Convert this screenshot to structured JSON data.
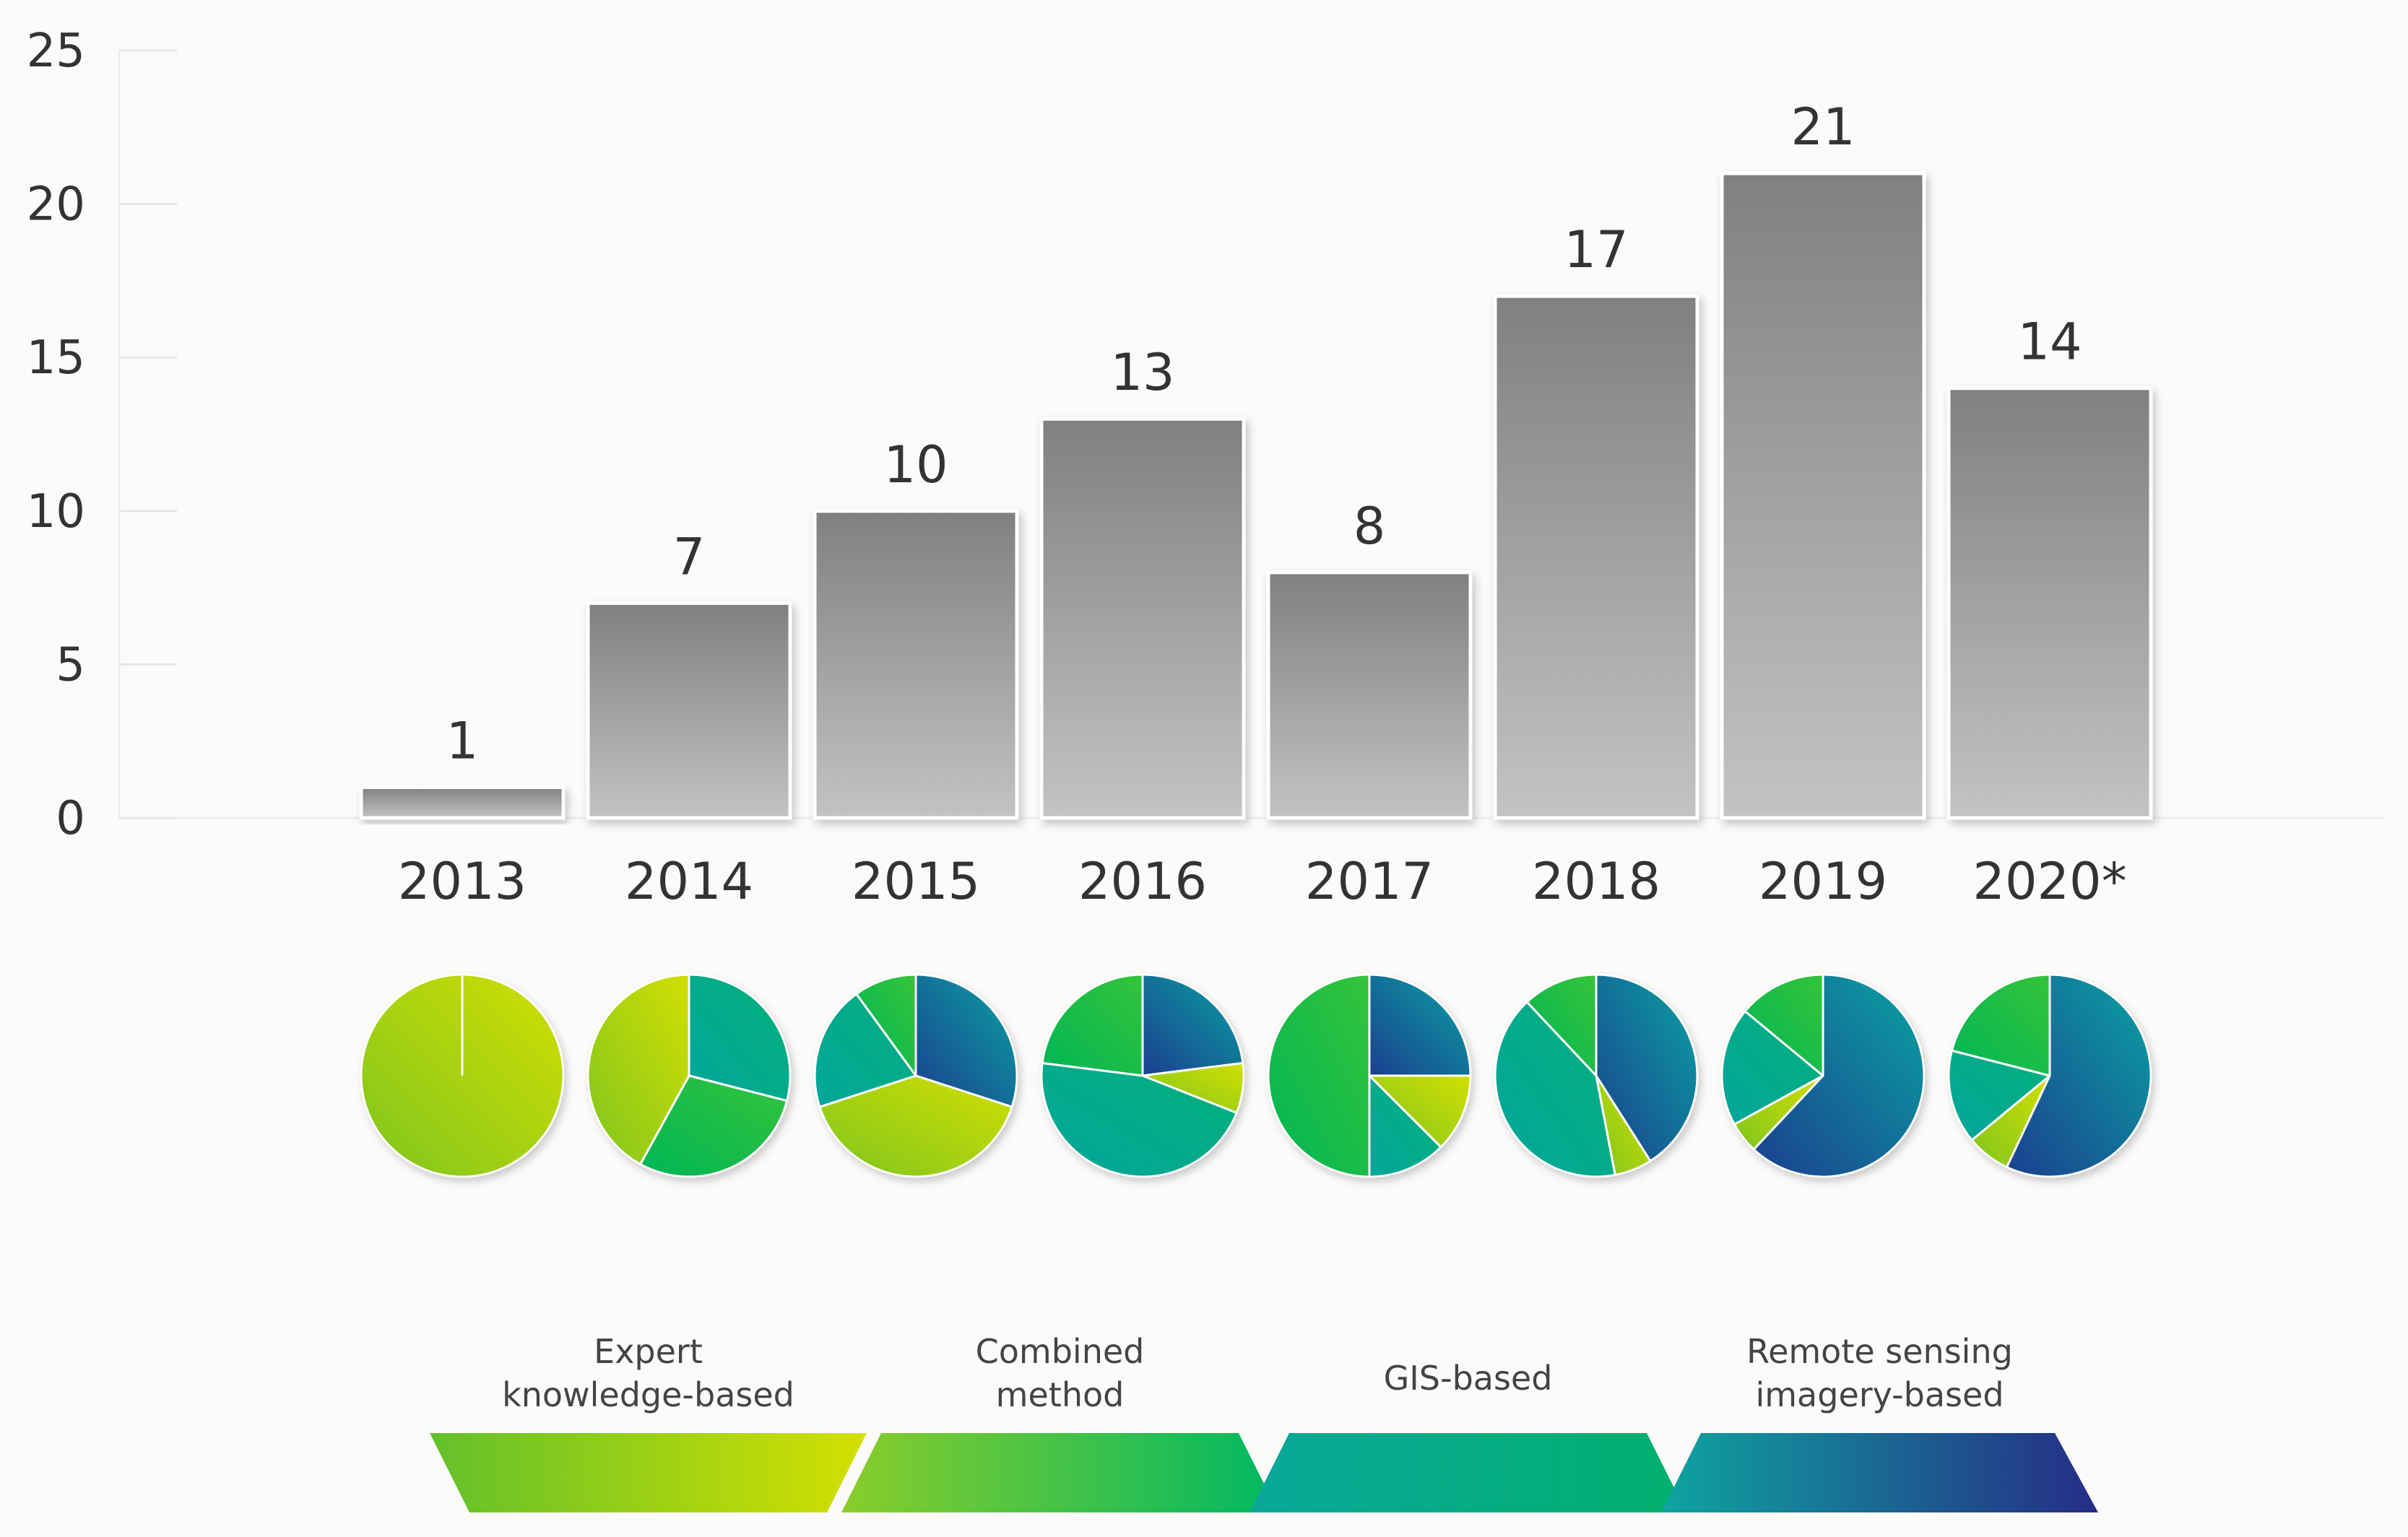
{
  "chart_data": {
    "type": "bar",
    "categories": [
      "2013",
      "2014",
      "2015",
      "2016",
      "2017",
      "2018",
      "2019",
      "2020*"
    ],
    "values": [
      1,
      7,
      10,
      13,
      8,
      17,
      21,
      14
    ],
    "value_labels": [
      "1",
      "7",
      "10",
      "13",
      "8",
      "17",
      "21",
      "14"
    ],
    "ylim": [
      0,
      25
    ],
    "yticks": [
      0,
      5,
      10,
      15,
      20,
      25
    ],
    "ytick_labels": [
      "0",
      "5",
      "10",
      "15",
      "20",
      "25"
    ],
    "title": "",
    "xlabel": "",
    "ylabel": "",
    "grid": false,
    "bar_color_top": "#7e8082",
    "bar_color_bottom": "#c2c3c5",
    "pie_series": [
      {
        "year": "2013",
        "slices": [
          {
            "method": "Remote sensing imagery-based",
            "share": 0.0
          },
          {
            "method": "GIS-based",
            "share": 0.0
          },
          {
            "method": "Combined method",
            "share": 0.0
          },
          {
            "method": "Expert knowledge-based",
            "share": 1.0
          }
        ]
      },
      {
        "year": "2014",
        "slices": [
          {
            "method": "Remote sensing imagery-based",
            "share": 0.0
          },
          {
            "method": "GIS-based",
            "share": 0.29
          },
          {
            "method": "Combined method",
            "share": 0.29
          },
          {
            "method": "Expert knowledge-based",
            "share": 0.42
          }
        ]
      },
      {
        "year": "2015",
        "slices": [
          {
            "method": "Remote sensing imagery-based",
            "share": 0.3
          },
          {
            "method": "Expert knowledge-based",
            "share": 0.4
          },
          {
            "method": "GIS-based",
            "share": 0.2
          },
          {
            "method": "Combined method",
            "share": 0.1
          }
        ]
      },
      {
        "year": "2016",
        "slices": [
          {
            "method": "Remote sensing imagery-based",
            "share": 0.23
          },
          {
            "method": "Expert knowledge-based",
            "share": 0.08
          },
          {
            "method": "GIS-based",
            "share": 0.46
          },
          {
            "method": "Combined method",
            "share": 0.23
          }
        ]
      },
      {
        "year": "2017",
        "slices": [
          {
            "method": "Remote sensing imagery-based",
            "share": 0.25
          },
          {
            "method": "Expert knowledge-based",
            "share": 0.125
          },
          {
            "method": "GIS-based",
            "share": 0.125
          },
          {
            "method": "Combined method",
            "share": 0.5
          }
        ]
      },
      {
        "year": "2018",
        "slices": [
          {
            "method": "Remote sensing imagery-based",
            "share": 0.41
          },
          {
            "method": "Expert knowledge-based",
            "share": 0.06
          },
          {
            "method": "GIS-based",
            "share": 0.41
          },
          {
            "method": "Combined method",
            "share": 0.12
          }
        ]
      },
      {
        "year": "2019",
        "slices": [
          {
            "method": "Remote sensing imagery-based",
            "share": 0.62
          },
          {
            "method": "Expert knowledge-based",
            "share": 0.05
          },
          {
            "method": "GIS-based",
            "share": 0.19
          },
          {
            "method": "Combined method",
            "share": 0.14
          }
        ]
      },
      {
        "year": "2020*",
        "slices": [
          {
            "method": "Remote sensing imagery-based",
            "share": 0.57
          },
          {
            "method": "Expert knowledge-based",
            "share": 0.07
          },
          {
            "method": "GIS-based",
            "share": 0.15
          },
          {
            "method": "Combined method",
            "share": 0.21
          }
        ]
      }
    ],
    "legend": [
      {
        "label_lines": [
          "Expert",
          "knowledge-based"
        ],
        "color_from": "#62c02b",
        "color_to": "#d4e000"
      },
      {
        "label_lines": [
          "Combined",
          "method"
        ],
        "color_from": "#8acd2a",
        "color_to": "#00b863"
      },
      {
        "label_lines": [
          "GIS-based"
        ],
        "color_from": "#0aa79a",
        "color_to": "#00b06e"
      },
      {
        "label_lines": [
          "Remote sensing",
          "imagery-based"
        ],
        "color_from": "#0ea4a0",
        "color_to": "#262c86"
      }
    ],
    "method_colors": {
      "Expert knowledge-based": [
        "#7fc51f",
        "#d2df02"
      ],
      "Combined method": [
        "#00b656",
        "#35c33a"
      ],
      "GIS-based": [
        "#04a69b",
        "#00b07a"
      ],
      "Remote sensing imagery-based": [
        "#1b3f8f",
        "#0aa2a2"
      ]
    }
  }
}
